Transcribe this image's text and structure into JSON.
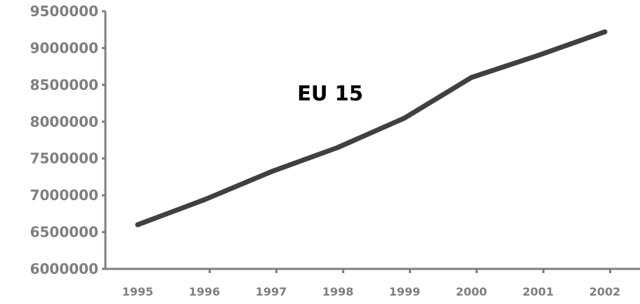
{
  "chart_data": {
    "type": "line",
    "title": "EU 15",
    "xlabel": "",
    "ylabel": "",
    "categories": [
      "1995",
      "1996",
      "1997",
      "1998",
      "1999",
      "2000",
      "2001",
      "2002"
    ],
    "series": [
      {
        "values": [
          6600000,
          6940000,
          7320000,
          7650000,
          8050000,
          8600000,
          8900000,
          9220000
        ]
      }
    ],
    "y_ticks": [
      "6000000",
      "6500000",
      "7000000",
      "7500000",
      "8000000",
      "8500000",
      "9000000",
      "9500000"
    ],
    "ylim": [
      6000000,
      9500000
    ],
    "grid": false,
    "legend": "none",
    "colors": {
      "line": "#404040",
      "axis": "#7f7f7f",
      "tick_text": "#7f7f7f",
      "title": "#000000"
    }
  }
}
